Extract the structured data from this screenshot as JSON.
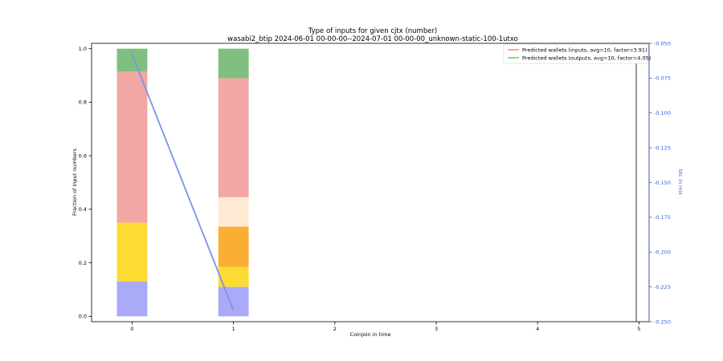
{
  "chart_data": {
    "type": "bar",
    "title": "Type of inputs for given cjtx (number)",
    "subtitle": "wasabi2_btip 2024-06-01 00-00-00--2024-07-01 00-00-00_unknown-static-100-1utxo",
    "xlabel": "Coinjoin in time",
    "ylabel": "Fraction of input numbers",
    "y2label": "btc in mix",
    "xlim": [
      -0.4,
      5.1
    ],
    "ylim": [
      -0.02,
      1.02
    ],
    "y2lim": [
      -0.25,
      -0.05
    ],
    "x_ticks": [
      "0",
      "1",
      "2",
      "3",
      "4",
      "5"
    ],
    "y_ticks": [
      "0.0",
      "0.2",
      "0.4",
      "0.6",
      "0.8",
      "1.0"
    ],
    "y2_ticks": [
      "-0.050",
      "-0.075",
      "-0.100",
      "-0.125",
      "-0.150",
      "-0.175",
      "-0.200",
      "-0.225",
      "-0.250"
    ],
    "stacked_series": [
      {
        "color": "#aaaaf8",
        "values": [
          0.13,
          0.11
        ]
      },
      {
        "color": "#fcdc33",
        "values": [
          0.22,
          0.075
        ]
      },
      {
        "color": "#fbae34",
        "values": [
          0.0,
          0.15
        ]
      },
      {
        "color": "#fdebd4",
        "values": [
          0.0,
          0.11
        ]
      },
      {
        "color": "#f2a7a4",
        "values": [
          0.565,
          0.445
        ]
      },
      {
        "color": "#7fbf7f",
        "values": [
          0.085,
          0.11
        ]
      }
    ],
    "categories": [
      0,
      1
    ],
    "line_series": {
      "color": "#7c93e6",
      "x": [
        0,
        1
      ],
      "y": [
        -0.058,
        -0.242
      ]
    },
    "legend": {
      "position": "top-right",
      "entries": [
        {
          "label": "Predicted wallets (inputs, avg=10, factor=3.91)",
          "color": "#f4775e"
        },
        {
          "label": "Predicted wallets (outputs, avg=10, factor=4.05)",
          "color": "#4cc04c"
        }
      ]
    }
  }
}
